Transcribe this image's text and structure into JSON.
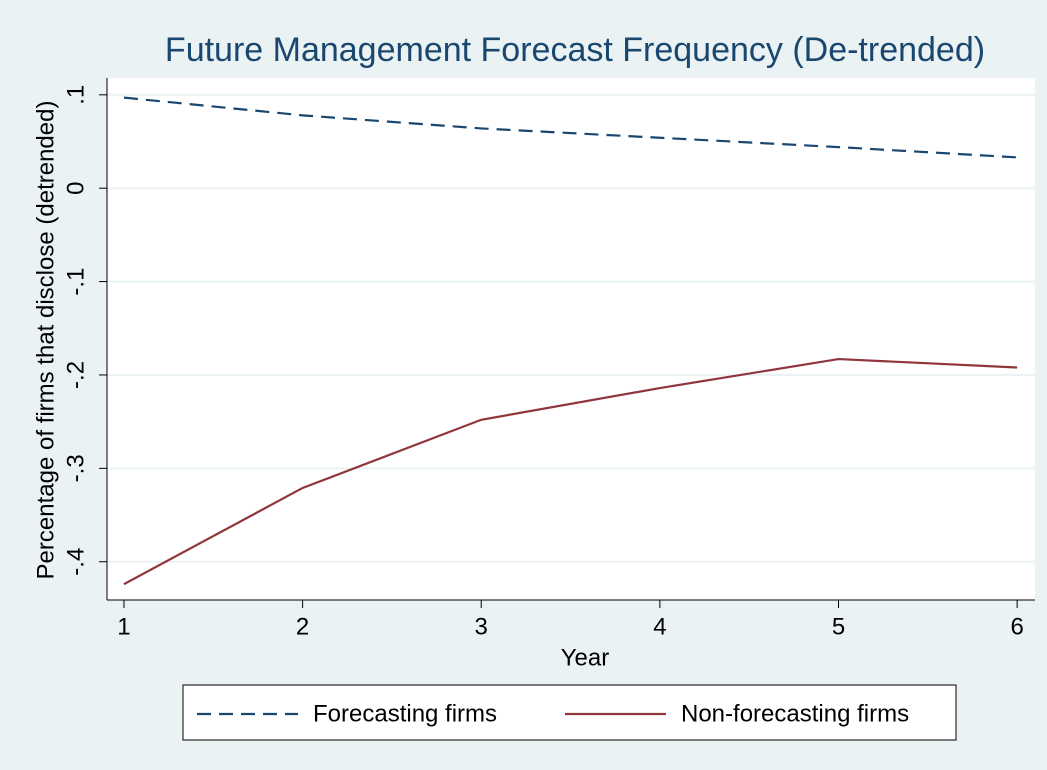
{
  "chart_data": {
    "type": "line",
    "title": "Future Management Forecast Frequency (De-trended)",
    "x_label": "Year",
    "y_label": "Percentage of firms that disclose (detrended)",
    "x": [
      1,
      2,
      3,
      4,
      5,
      6
    ],
    "series": [
      {
        "name": "Forecasting firms",
        "color": "#1a476f",
        "dash": true,
        "values": [
          0.097,
          0.078,
          0.064,
          0.054,
          0.044,
          0.033
        ]
      },
      {
        "name": "Non-forecasting firms",
        "color": "#90353b",
        "dash": false,
        "values": [
          -0.424,
          -0.321,
          -0.248,
          -0.214,
          -0.183,
          -0.192
        ]
      }
    ],
    "xlim": [
      0.905,
      6.1
    ],
    "xticks": [
      1,
      2,
      3,
      4,
      5,
      6
    ],
    "ylim": [
      -0.441,
      0.118
    ],
    "yticks": [
      {
        "value": 0.1,
        "label": ".1"
      },
      0,
      {
        "value": -0.1,
        "label": "-.1"
      },
      {
        "value": -0.2,
        "label": "-.2"
      },
      {
        "value": -0.3,
        "label": "-.3"
      },
      {
        "value": -0.4,
        "label": "-.4"
      }
    ],
    "grid": true,
    "legend": "bottom"
  }
}
